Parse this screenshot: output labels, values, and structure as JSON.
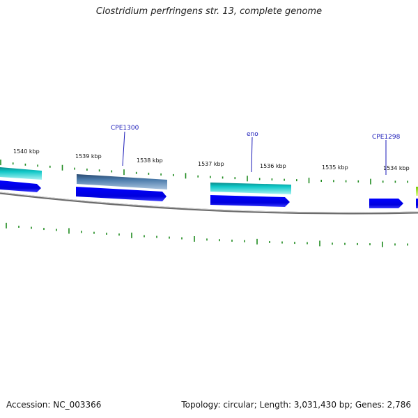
{
  "header": {
    "title": "Clostridium perfringens str. 13, complete genome"
  },
  "footer": {
    "accession": "Accession: NC_003366",
    "stats": "Topology: circular; Length: 3,031,430 bp; Genes: 2,786"
  },
  "map": {
    "kbp_labels": [
      "1540 kbp",
      "1539 kbp",
      "1538 kbp",
      "1537 kbp",
      "1536 kbp",
      "1535 kbp",
      "1534 kbp"
    ],
    "gene_labels": [
      "CPE1300",
      "eno",
      "CPE1298"
    ],
    "colors": {
      "cds": "#0000ee",
      "rna_teal": "#10c8c8",
      "rna_steel": "#4a7aaa",
      "tick": "#1e8a1e",
      "backbone": "#777777",
      "label": "#1a1ab8",
      "partial_feature": "#aaee22"
    }
  }
}
